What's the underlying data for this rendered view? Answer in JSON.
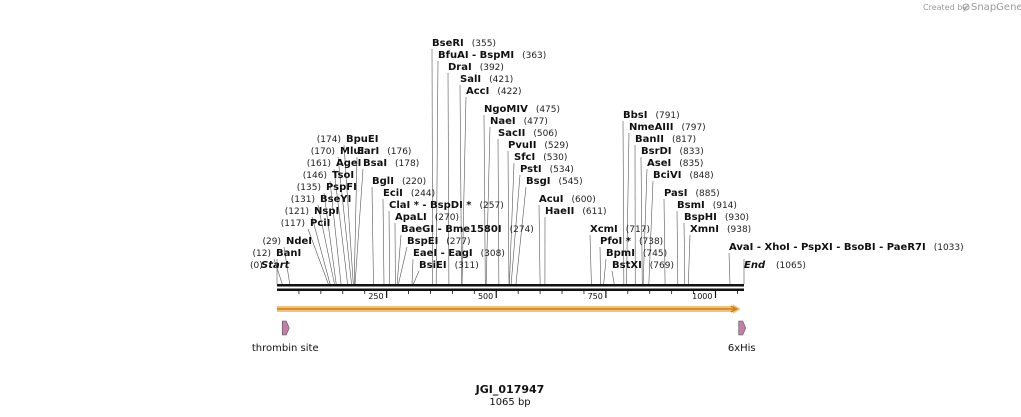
{
  "credit": {
    "prefix": "Created by",
    "brand": "SnapGene"
  },
  "sequence": {
    "name": "JGI_017947",
    "length_label": "1065 bp",
    "length": 1065
  },
  "start_marker": {
    "name": "Start",
    "pos": "(0)"
  },
  "end_marker": {
    "name": "End",
    "pos": "(1065)"
  },
  "ticks": [
    {
      "value": 250,
      "label": "250"
    },
    {
      "value": 500,
      "label": "500"
    },
    {
      "value": 750,
      "label": "750"
    },
    {
      "value": 1000,
      "label": "1000"
    }
  ],
  "enzymes": [
    {
      "name": "BanI",
      "pos": "(12)",
      "site": 12,
      "side": "left"
    },
    {
      "name": "NdeI",
      "pos": "(29)",
      "site": 29,
      "side": "left"
    },
    {
      "name": "PciI",
      "pos": "(117)",
      "site": 117,
      "side": "left"
    },
    {
      "name": "NspI",
      "pos": "(121)",
      "site": 121,
      "side": "left"
    },
    {
      "name": "BseYI",
      "pos": "(131)",
      "site": 131,
      "side": "left"
    },
    {
      "name": "PspFI",
      "pos": "(135)",
      "site": 135,
      "side": "left"
    },
    {
      "name": "TsoI",
      "pos": "(146)",
      "site": 146,
      "side": "left"
    },
    {
      "name": "AgeI",
      "pos": "(161)",
      "site": 161,
      "side": "left"
    },
    {
      "name": "MluI",
      "pos": "(170)",
      "site": 170,
      "side": "left"
    },
    {
      "name": "BpuEI",
      "pos": "(174)",
      "site": 174,
      "side": "left"
    },
    {
      "name": "EarI",
      "pos": "(176)",
      "site": 176,
      "side": "right"
    },
    {
      "name": "BsaI",
      "pos": "(178)",
      "site": 178,
      "side": "right"
    },
    {
      "name": "BglI",
      "pos": "(220)",
      "site": 220,
      "side": "right"
    },
    {
      "name": "EciI",
      "pos": "(244)",
      "site": 244,
      "side": "right"
    },
    {
      "name": "ClaI * - BspDI *",
      "pos": "(257)",
      "site": 257,
      "side": "right"
    },
    {
      "name": "ApaLI",
      "pos": "(270)",
      "site": 270,
      "side": "right"
    },
    {
      "name": "BaeGI - Bme1580I",
      "pos": "(274)",
      "site": 274,
      "side": "right"
    },
    {
      "name": "BspEI",
      "pos": "(277)",
      "site": 277,
      "side": "right"
    },
    {
      "name": "EaeI - EagI",
      "pos": "(308)",
      "site": 308,
      "side": "right"
    },
    {
      "name": "BsiEI",
      "pos": "(311)",
      "site": 311,
      "side": "right"
    },
    {
      "name": "BseRI",
      "pos": "(355)",
      "site": 355,
      "side": "right"
    },
    {
      "name": "BfuAI - BspMI",
      "pos": "(363)",
      "site": 363,
      "side": "right"
    },
    {
      "name": "DraI",
      "pos": "(392)",
      "site": 392,
      "side": "right"
    },
    {
      "name": "SalI",
      "pos": "(421)",
      "site": 421,
      "side": "right"
    },
    {
      "name": "AccI",
      "pos": "(422)",
      "site": 422,
      "side": "right"
    },
    {
      "name": "NgoMIV",
      "pos": "(475)",
      "site": 475,
      "side": "right"
    },
    {
      "name": "NaeI",
      "pos": "(477)",
      "site": 477,
      "side": "right"
    },
    {
      "name": "SacII",
      "pos": "(506)",
      "site": 506,
      "side": "right"
    },
    {
      "name": "PvuII",
      "pos": "(529)",
      "site": 529,
      "side": "right"
    },
    {
      "name": "SfcI",
      "pos": "(530)",
      "site": 530,
      "side": "right"
    },
    {
      "name": "PstI",
      "pos": "(534)",
      "site": 534,
      "side": "right"
    },
    {
      "name": "BsgI",
      "pos": "(545)",
      "site": 545,
      "side": "right"
    },
    {
      "name": "AcuI",
      "pos": "(600)",
      "site": 600,
      "side": "right"
    },
    {
      "name": "HaeII",
      "pos": "(611)",
      "site": 611,
      "side": "right"
    },
    {
      "name": "XcmI",
      "pos": "(717)",
      "site": 717,
      "side": "right"
    },
    {
      "name": "PfoI *",
      "pos": "(738)",
      "site": 738,
      "side": "right"
    },
    {
      "name": "BpmI",
      "pos": "(745)",
      "site": 745,
      "side": "right"
    },
    {
      "name": "BstXI",
      "pos": "(769)",
      "site": 769,
      "side": "right"
    },
    {
      "name": "BbsI",
      "pos": "(791)",
      "site": 791,
      "side": "right"
    },
    {
      "name": "NmeAIII",
      "pos": "(797)",
      "site": 797,
      "side": "right"
    },
    {
      "name": "BanII",
      "pos": "(817)",
      "site": 817,
      "side": "right"
    },
    {
      "name": "BsrDI",
      "pos": "(833)",
      "site": 833,
      "side": "right"
    },
    {
      "name": "AseI",
      "pos": "(835)",
      "site": 835,
      "side": "right"
    },
    {
      "name": "BciVI",
      "pos": "(848)",
      "site": 848,
      "side": "right"
    },
    {
      "name": "PasI",
      "pos": "(885)",
      "site": 885,
      "side": "right"
    },
    {
      "name": "BsmI",
      "pos": "(914)",
      "site": 914,
      "side": "right"
    },
    {
      "name": "BspHI",
      "pos": "(930)",
      "site": 930,
      "side": "right"
    },
    {
      "name": "XmnI",
      "pos": "(938)",
      "site": 938,
      "side": "right"
    },
    {
      "name": "AvaI - XhoI - PspXI - BsoBI - PaeR7I",
      "pos": "(1033)",
      "site": 1033,
      "side": "right"
    }
  ],
  "features": [
    {
      "name": "thrombin site",
      "site": 12,
      "color": "#c27fa6"
    },
    {
      "name": "6xHis",
      "site": 1053,
      "color": "#c27fa6"
    }
  ],
  "orf_arrow": {
    "start": 0,
    "end": 1053,
    "color": "#f2c27c",
    "line": "#c8801a"
  },
  "colors": {
    "line": "#555555",
    "backbone": "#111111"
  }
}
